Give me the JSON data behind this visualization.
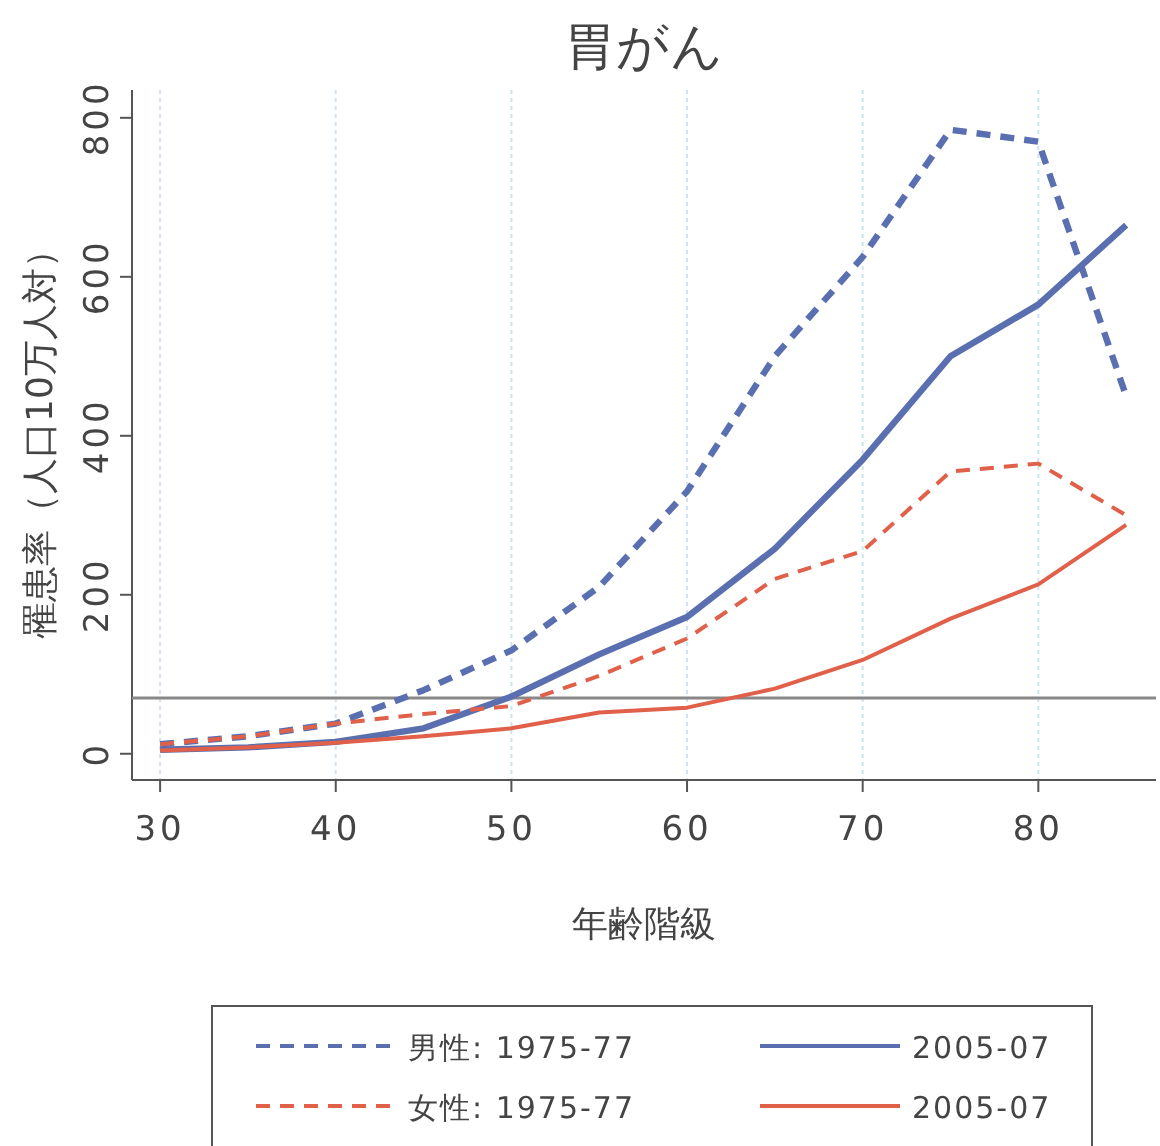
{
  "chart_data": {
    "type": "line",
    "title": "胃がん",
    "xlabel": "年齢階級",
    "ylabel": "罹患率（人口10万人対）",
    "x": [
      30,
      35,
      40,
      45,
      50,
      55,
      60,
      65,
      70,
      75,
      80,
      85
    ],
    "series": [
      {
        "name": "男性: 1975-77",
        "color": "#5a6fb0",
        "line_style": "dashed",
        "values": [
          12,
          22,
          38,
          80,
          130,
          210,
          330,
          500,
          625,
          785,
          770,
          450
        ]
      },
      {
        "name": "2005-07",
        "color": "#5a6fb0",
        "line_style": "solid",
        "values": [
          5,
          8,
          15,
          32,
          72,
          125,
          172,
          258,
          370,
          500,
          565,
          665
        ]
      },
      {
        "name": "女性: 1975-77",
        "color": "#e0604a",
        "line_style": "dashed",
        "values": [
          12,
          22,
          38,
          50,
          60,
          98,
          145,
          220,
          255,
          355,
          365,
          300
        ]
      },
      {
        "name": "2005-07",
        "color": "#e0604a",
        "line_style": "solid",
        "values": [
          4,
          8,
          14,
          22,
          32,
          52,
          58,
          82,
          118,
          170,
          213,
          288
        ]
      }
    ],
    "xlim": [
      28.4,
      86.7
    ],
    "ylim": [
      -33,
      835
    ],
    "xticks": [
      30,
      40,
      50,
      60,
      70,
      80
    ],
    "yticks": [
      0,
      200,
      400,
      600,
      800
    ],
    "ref_lines": [
      {
        "axis": "y",
        "value": 70,
        "color": "#888888"
      }
    ],
    "grid": "x",
    "legend": "bottom",
    "marker": "none"
  }
}
